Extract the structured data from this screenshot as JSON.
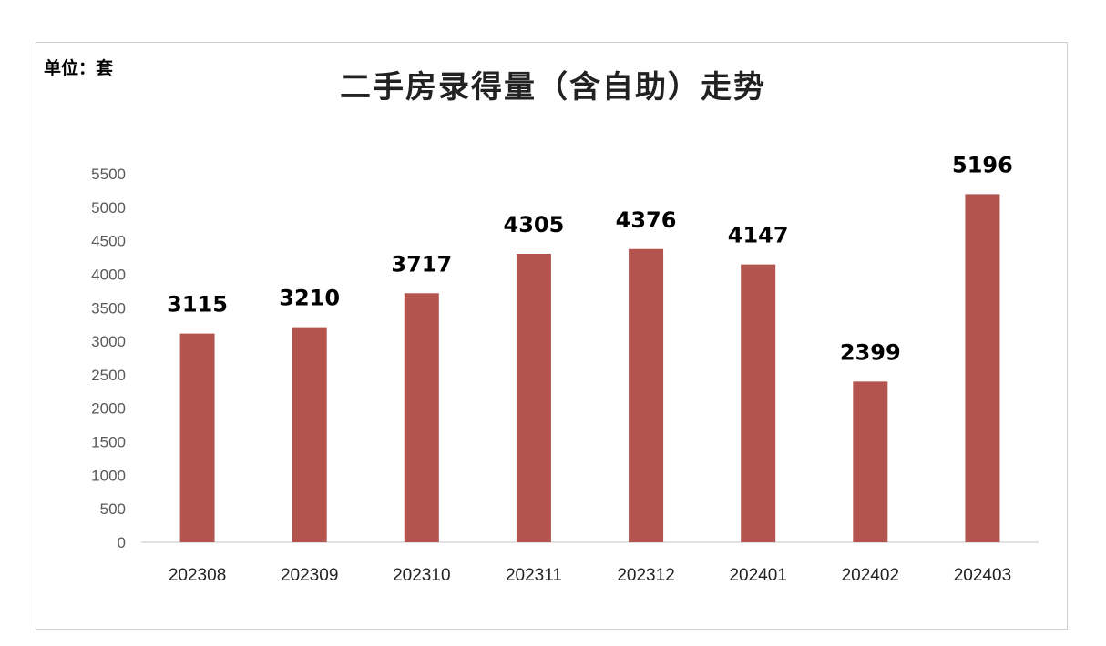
{
  "unit_label": "单位：套",
  "chart_data": {
    "type": "bar",
    "title": "二手房录得量（含自助）走势",
    "unit": "单位：套",
    "categories": [
      "202308",
      "202309",
      "202310",
      "202311",
      "202312",
      "202401",
      "202402",
      "202403"
    ],
    "values": [
      3115,
      3210,
      3717,
      4305,
      4376,
      4147,
      2399,
      5196
    ],
    "xlabel": "",
    "ylabel": "",
    "ylim": [
      0,
      5500
    ],
    "yticks": [
      0,
      500,
      1000,
      1500,
      2000,
      2500,
      3000,
      3500,
      4000,
      4500,
      5000,
      5500
    ],
    "grid": false,
    "legend": "none",
    "bar_color": "#b4544e",
    "axis_color": "#d9d9d9"
  }
}
